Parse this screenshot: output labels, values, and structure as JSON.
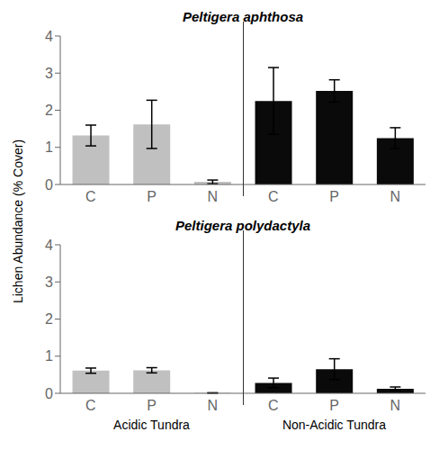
{
  "chart_data": [
    {
      "type": "bar",
      "title": "Peltigera aphthosa",
      "ylabel": "Lichen Abundance (% Cover)",
      "categories": [
        "C",
        "P",
        "N",
        "C",
        "P",
        "N"
      ],
      "values": [
        1.32,
        1.62,
        0.07,
        2.25,
        2.52,
        1.25
      ],
      "errors": [
        0.28,
        0.65,
        0.05,
        0.9,
        0.3,
        0.28
      ],
      "colors": [
        "#c0c0c0",
        "#c0c0c0",
        "#c0c0c0",
        "#0a0a0a",
        "#0a0a0a",
        "#0a0a0a"
      ],
      "ylim": [
        0,
        4
      ],
      "yticks": [
        0,
        1,
        2,
        3,
        4
      ],
      "grid": false
    },
    {
      "type": "bar",
      "title": "Peltigera polydactyla",
      "categories": [
        "C",
        "P",
        "N",
        "C",
        "P",
        "N"
      ],
      "values": [
        0.61,
        0.62,
        0.01,
        0.28,
        0.65,
        0.12
      ],
      "errors": [
        0.07,
        0.07,
        0.005,
        0.13,
        0.28,
        0.05
      ],
      "colors": [
        "#c0c0c0",
        "#c0c0c0",
        "#c0c0c0",
        "#0a0a0a",
        "#0a0a0a",
        "#0a0a0a"
      ],
      "ylim": [
        0,
        4
      ],
      "yticks": [
        0,
        1,
        2,
        3,
        4
      ],
      "grid": false,
      "annotations": [
        "Acidic Tundra",
        "Non-Acidic Tundra"
      ]
    }
  ]
}
